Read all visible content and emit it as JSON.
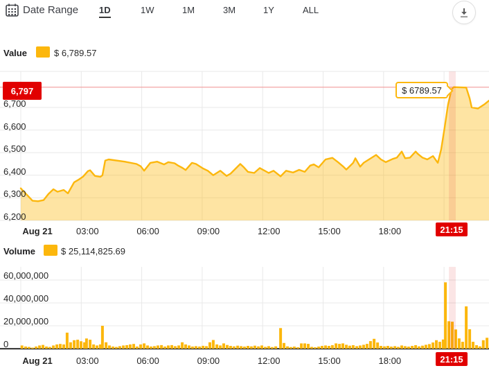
{
  "header": {
    "date_range_label": "Date Range",
    "tabs": [
      {
        "label": "1D",
        "active": true
      },
      {
        "label": "1W",
        "active": false
      },
      {
        "label": "1M",
        "active": false
      },
      {
        "label": "3M",
        "active": false
      },
      {
        "label": "1Y",
        "active": false
      },
      {
        "label": "ALL",
        "active": false
      }
    ],
    "download_icon": "download-icon",
    "calendar_icon": "calendar-icon"
  },
  "price_section": {
    "legend_label": "Value",
    "legend_value": "$ 6,789.57",
    "axis_price_label": "6,797",
    "tooltip_value": "$ 6789.57",
    "y_ticks": [
      "6,700",
      "6,600",
      "6,500",
      "6,400",
      "6,300",
      "6,200"
    ],
    "x_ticks": [
      "Aug 21",
      "03:00",
      "06:00",
      "09:00",
      "12:00",
      "15:00",
      "18:00"
    ],
    "current_time_label": "21:15"
  },
  "volume_section": {
    "legend_label": "Volume",
    "legend_value": "$ 25,114,825.69",
    "y_ticks": [
      "60,000,000",
      "40,000,000",
      "20,000,000",
      "0"
    ],
    "x_ticks": [
      "Aug 21",
      "03:00",
      "06:00",
      "09:00",
      "12:00",
      "15:00",
      "18:00"
    ],
    "current_time_label": "21:15"
  },
  "colors": {
    "accent_yellow": "#fcb70d",
    "area_fill": "rgba(252,183,13,0.38)",
    "marker_red": "#e10000",
    "reference_line_red": "#f19a9a",
    "highlight_band": "rgba(225,40,40,0.12)",
    "grid": "#e8e8e8",
    "volume_axis": "#3d3d3d"
  },
  "chart_data": [
    {
      "type": "area",
      "name": "Value",
      "unit": "USD",
      "x_unit": "hours_since_midnight_Aug_21",
      "title": "BTC price, 1 day",
      "ylim": [
        6200,
        6860
      ],
      "y_axis_ticks": [
        6200,
        6300,
        6400,
        6500,
        6600,
        6700
      ],
      "x_axis_grid_hours": [
        0,
        3,
        6,
        9,
        12,
        15,
        18,
        21
      ],
      "reference_price": 6789.57,
      "marker_price_label": 6797,
      "highlight_time_hours": [
        21.24,
        21.58
      ],
      "x": [
        0,
        0.58,
        0.86,
        1.13,
        1.37,
        1.62,
        1.82,
        2.13,
        2.34,
        2.65,
        2.85,
        3.09,
        3.33,
        3.44,
        3.68,
        3.95,
        4.05,
        4.19,
        4.36,
        5.15,
        5.74,
        5.95,
        6.12,
        6.43,
        6.77,
        7.11,
        7.32,
        7.63,
        7.8,
        8.01,
        8.18,
        8.49,
        8.69,
        9.04,
        9.28,
        9.55,
        9.9,
        10.21,
        10.41,
        10.89,
        11.07,
        11.27,
        11.58,
        11.86,
        12.3,
        12.54,
        12.89,
        13.16,
        13.51,
        13.81,
        14.09,
        14.36,
        14.54,
        14.78,
        15.12,
        15.46,
        15.74,
        15.98,
        16.15,
        16.49,
        16.6,
        16.84,
        17.01,
        17.63,
        17.87,
        18.11,
        18.45,
        18.66,
        18.9,
        19.07,
        19.31,
        19.59,
        19.69,
        19.93,
        20.17,
        20.45,
        20.69,
        20.86,
        21.03,
        21.2,
        21.37,
        21.48,
        22.1,
        22.27,
        22.37,
        22.68,
        23.02,
        23.23
      ],
      "y": [
        6342,
        6287,
        6285,
        6290,
        6317,
        6338,
        6327,
        6335,
        6320,
        6369,
        6379,
        6394,
        6418,
        6422,
        6397,
        6393,
        6400,
        6465,
        6470,
        6460,
        6450,
        6440,
        6420,
        6455,
        6460,
        6448,
        6458,
        6453,
        6443,
        6433,
        6423,
        6455,
        6450,
        6430,
        6420,
        6400,
        6420,
        6397,
        6407,
        6450,
        6435,
        6415,
        6410,
        6432,
        6410,
        6420,
        6395,
        6420,
        6412,
        6424,
        6415,
        6443,
        6448,
        6435,
        6470,
        6477,
        6458,
        6440,
        6425,
        6455,
        6475,
        6438,
        6455,
        6490,
        6470,
        6458,
        6472,
        6478,
        6505,
        6475,
        6478,
        6505,
        6495,
        6478,
        6470,
        6485,
        6455,
        6515,
        6613,
        6713,
        6780,
        6790,
        6788,
        6740,
        6700,
        6695,
        6715,
        6730
      ]
    },
    {
      "type": "bar",
      "name": "Volume",
      "unit": "USD_millions",
      "x_unit": "hours_since_midnight_Aug_21",
      "ylim": [
        0,
        72
      ],
      "y_axis_ticks": [
        0,
        20,
        40,
        60
      ],
      "x": [
        0.06,
        0.24,
        0.41,
        0.58,
        0.76,
        0.93,
        1.1,
        1.27,
        1.44,
        1.62,
        1.79,
        1.96,
        2.13,
        2.3,
        2.47,
        2.65,
        2.82,
        2.99,
        3.16,
        3.26,
        3.44,
        3.61,
        3.78,
        3.95,
        4.05,
        4.23,
        4.4,
        4.57,
        4.74,
        4.91,
        5.09,
        5.26,
        5.43,
        5.6,
        5.77,
        5.95,
        6.12,
        6.29,
        6.46,
        6.63,
        6.8,
        6.98,
        7.15,
        7.32,
        7.49,
        7.66,
        7.84,
        8.01,
        8.18,
        8.35,
        8.52,
        8.69,
        8.87,
        9.04,
        9.21,
        9.38,
        9.55,
        9.73,
        9.9,
        10.07,
        10.24,
        10.41,
        10.58,
        10.76,
        10.93,
        11.1,
        11.27,
        11.44,
        11.61,
        11.79,
        11.96,
        12.13,
        12.3,
        12.47,
        12.65,
        12.89,
        13.06,
        13.23,
        13.4,
        13.57,
        13.75,
        13.92,
        14.09,
        14.26,
        14.43,
        14.6,
        14.78,
        14.95,
        15.12,
        15.29,
        15.46,
        15.64,
        15.81,
        15.98,
        16.15,
        16.32,
        16.49,
        16.67,
        16.84,
        17.01,
        17.18,
        17.35,
        17.53,
        17.7,
        17.87,
        18.04,
        18.21,
        18.38,
        18.56,
        18.73,
        18.9,
        19.07,
        19.24,
        19.42,
        19.59,
        19.76,
        19.93,
        20.1,
        20.27,
        20.45,
        20.62,
        20.79,
        20.96,
        21.07,
        21.24,
        21.41,
        21.58,
        21.75,
        21.92,
        22.1,
        22.27,
        22.44,
        22.61,
        22.78,
        22.95,
        23.13
      ],
      "y": [
        2.8,
        1.9,
        1.5,
        0.9,
        1.9,
        2.8,
        3.3,
        1.9,
        1.5,
        2.8,
        3.7,
        4.1,
        3.7,
        14,
        5.6,
        7.4,
        7.8,
        6.5,
        5.6,
        8.9,
        7.8,
        3.7,
        2.8,
        3.7,
        20,
        5.6,
        2.8,
        1.9,
        1.5,
        2.2,
        2.8,
        3.1,
        3.7,
        4.1,
        1.9,
        3.7,
        4.6,
        2.8,
        1.9,
        2.2,
        2.8,
        3.1,
        1.9,
        2.8,
        3.1,
        2.2,
        2.8,
        5.6,
        3.7,
        2.8,
        1.9,
        2.2,
        1.9,
        2.5,
        2.2,
        5.6,
        7.6,
        3.7,
        2.8,
        4.6,
        3.2,
        2.4,
        2,
        2.6,
        2.2,
        1.8,
        2.4,
        2,
        2.6,
        2,
        2.8,
        1.6,
        2.2,
        1.4,
        2,
        18,
        5,
        2,
        1.4,
        1.8,
        1.2,
        4.6,
        4.6,
        4.2,
        1.6,
        1.2,
        1.8,
        2.4,
        2.8,
        2.4,
        3,
        4.6,
        4.2,
        4.6,
        3.4,
        2.6,
        3,
        2.2,
        2.8,
        3.4,
        4.2,
        6.6,
        8.6,
        5.4,
        2.4,
        2,
        2.4,
        1.8,
        2.2,
        1.6,
        2.8,
        2.2,
        1.8,
        2.4,
        3,
        2,
        2.6,
        3.4,
        4,
        5.4,
        7.4,
        6,
        8,
        58,
        24,
        23.6,
        16.8,
        9,
        6,
        37,
        17,
        6,
        3,
        2,
        7.4,
        9.5
      ]
    }
  ]
}
